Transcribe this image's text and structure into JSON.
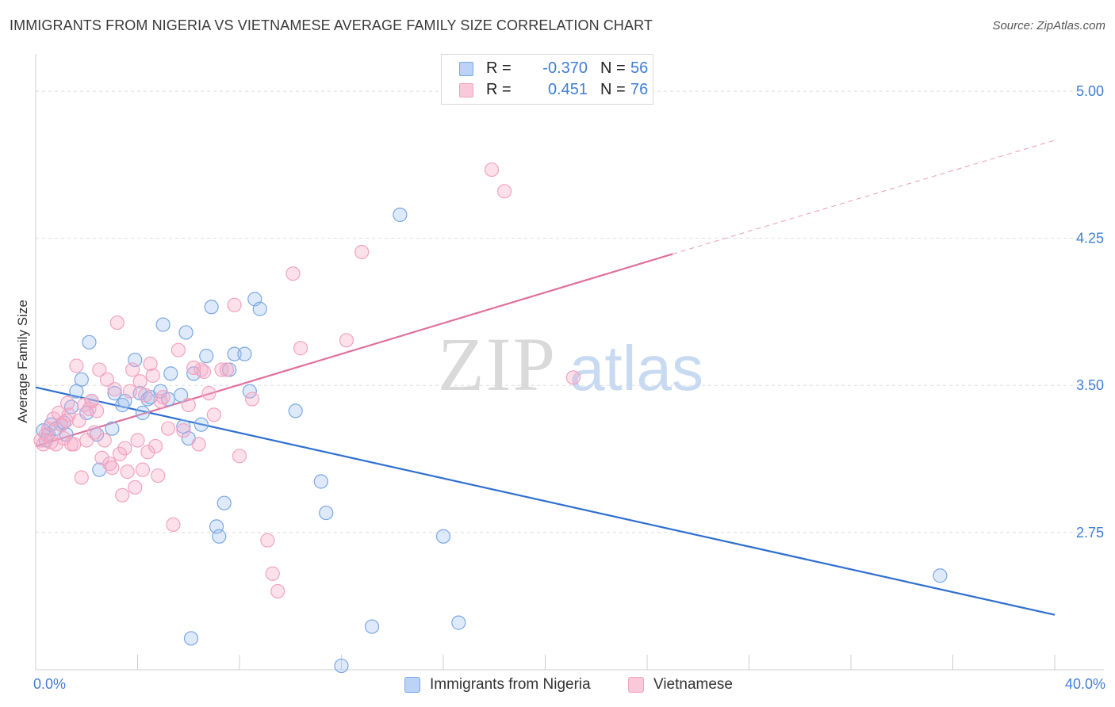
{
  "title": "IMMIGRANTS FROM NIGERIA VS VIETNAMESE AVERAGE FAMILY SIZE CORRELATION CHART",
  "source": "Source: ZipAtlas.com",
  "watermark": {
    "zip": "ZIP",
    "atlas": "atlas"
  },
  "legend_top": [
    {
      "r_label": "R =",
      "r_value": "-0.370",
      "n_label": "N =",
      "n_value": "56"
    },
    {
      "r_label": "R =",
      "r_value": "0.451",
      "n_label": "N =",
      "n_value": "76"
    }
  ],
  "chart_data": {
    "type": "scatter",
    "xlabel": "",
    "ylabel": "Average Family Size",
    "xlim": [
      0,
      40
    ],
    "ylim": [
      2.05,
      5.15
    ],
    "x_tick_labels": [
      {
        "value": 0,
        "label": "0.0%"
      },
      {
        "value": 40,
        "label": "40.0%"
      }
    ],
    "y_ticks": [
      {
        "value": 2.75,
        "label": "2.75"
      },
      {
        "value": 3.5,
        "label": "3.50"
      },
      {
        "value": 4.25,
        "label": "4.25"
      },
      {
        "value": 5.0,
        "label": "5.00"
      }
    ],
    "grid": true,
    "legend_position": "top-center",
    "series": [
      {
        "name": "Immigrants from Nigeria",
        "color": "#7aa7e6",
        "line_color": "#2f6fcf",
        "trend": {
          "x0": 0,
          "y0": 3.49,
          "x1": 40,
          "y1": 2.33
        },
        "points": [
          [
            0.3,
            3.27
          ],
          [
            0.5,
            3.25
          ],
          [
            0.6,
            3.3
          ],
          [
            0.8,
            3.28
          ],
          [
            1.0,
            3.3
          ],
          [
            1.2,
            3.25
          ],
          [
            1.4,
            3.39
          ],
          [
            1.6,
            3.47
          ],
          [
            1.8,
            3.53
          ],
          [
            2.0,
            3.36
          ],
          [
            2.1,
            3.72
          ],
          [
            2.2,
            3.42
          ],
          [
            2.4,
            3.25
          ],
          [
            2.5,
            3.07
          ],
          [
            3.0,
            3.28
          ],
          [
            3.1,
            3.46
          ],
          [
            3.4,
            3.4
          ],
          [
            3.5,
            3.42
          ],
          [
            3.9,
            3.63
          ],
          [
            4.1,
            3.46
          ],
          [
            4.2,
            3.36
          ],
          [
            4.4,
            3.43
          ],
          [
            4.5,
            3.44
          ],
          [
            4.9,
            3.47
          ],
          [
            5.0,
            3.81
          ],
          [
            5.2,
            3.43
          ],
          [
            5.3,
            3.56
          ],
          [
            5.7,
            3.45
          ],
          [
            5.8,
            3.29
          ],
          [
            5.9,
            3.77
          ],
          [
            6.0,
            3.23
          ],
          [
            6.1,
            2.21
          ],
          [
            6.2,
            3.56
          ],
          [
            6.5,
            3.3
          ],
          [
            6.7,
            3.65
          ],
          [
            6.9,
            3.9
          ],
          [
            7.1,
            2.78
          ],
          [
            7.2,
            2.73
          ],
          [
            7.4,
            2.9
          ],
          [
            7.6,
            3.58
          ],
          [
            7.8,
            3.66
          ],
          [
            8.2,
            3.66
          ],
          [
            8.4,
            3.47
          ],
          [
            8.6,
            3.94
          ],
          [
            8.8,
            3.89
          ],
          [
            10.2,
            3.37
          ],
          [
            11.2,
            3.01
          ],
          [
            11.4,
            2.85
          ],
          [
            12.0,
            2.07
          ],
          [
            13.2,
            2.27
          ],
          [
            14.3,
            4.37
          ],
          [
            16.0,
            2.73
          ],
          [
            16.6,
            2.29
          ],
          [
            35.5,
            2.53
          ],
          [
            0.4,
            3.22
          ],
          [
            1.1,
            3.31
          ]
        ]
      },
      {
        "name": "Vietnamese",
        "color": "#f2a3bf",
        "line_color": "#e0709a",
        "trend": {
          "x0": 0,
          "y0": 3.19,
          "x1": 25,
          "y1": 4.17
        },
        "trend_dashed": {
          "x0": 25,
          "y0": 4.17,
          "x1": 40,
          "y1": 4.75
        },
        "points": [
          [
            0.2,
            3.22
          ],
          [
            0.3,
            3.2
          ],
          [
            0.4,
            3.25
          ],
          [
            0.5,
            3.28
          ],
          [
            0.6,
            3.21
          ],
          [
            0.7,
            3.33
          ],
          [
            0.8,
            3.2
          ],
          [
            0.9,
            3.36
          ],
          [
            1.0,
            3.3
          ],
          [
            1.1,
            3.23
          ],
          [
            1.2,
            3.32
          ],
          [
            1.3,
            3.35
          ],
          [
            1.4,
            3.2
          ],
          [
            1.5,
            3.2
          ],
          [
            1.6,
            3.6
          ],
          [
            1.7,
            3.32
          ],
          [
            1.8,
            3.03
          ],
          [
            1.9,
            3.4
          ],
          [
            2.0,
            3.22
          ],
          [
            2.1,
            3.38
          ],
          [
            2.2,
            3.42
          ],
          [
            2.3,
            3.26
          ],
          [
            2.4,
            3.37
          ],
          [
            2.5,
            3.58
          ],
          [
            2.6,
            3.13
          ],
          [
            2.7,
            3.22
          ],
          [
            2.8,
            3.53
          ],
          [
            2.9,
            3.1
          ],
          [
            3.0,
            3.08
          ],
          [
            3.1,
            3.48
          ],
          [
            3.2,
            3.82
          ],
          [
            3.3,
            3.15
          ],
          [
            3.4,
            2.94
          ],
          [
            3.5,
            3.18
          ],
          [
            3.6,
            3.06
          ],
          [
            3.7,
            3.47
          ],
          [
            3.8,
            3.58
          ],
          [
            3.9,
            2.98
          ],
          [
            4.0,
            3.22
          ],
          [
            4.1,
            3.52
          ],
          [
            4.2,
            3.07
          ],
          [
            4.3,
            3.45
          ],
          [
            4.4,
            3.16
          ],
          [
            4.5,
            3.61
          ],
          [
            4.6,
            3.55
          ],
          [
            4.7,
            3.19
          ],
          [
            4.8,
            3.04
          ],
          [
            4.9,
            3.42
          ],
          [
            5.0,
            3.44
          ],
          [
            5.2,
            3.28
          ],
          [
            5.4,
            2.79
          ],
          [
            5.6,
            3.68
          ],
          [
            5.8,
            3.27
          ],
          [
            6.0,
            3.4
          ],
          [
            6.2,
            3.59
          ],
          [
            6.4,
            3.2
          ],
          [
            6.5,
            3.58
          ],
          [
            6.6,
            3.57
          ],
          [
            6.8,
            3.46
          ],
          [
            7.0,
            3.35
          ],
          [
            7.3,
            3.58
          ],
          [
            7.5,
            3.58
          ],
          [
            7.8,
            3.91
          ],
          [
            8.0,
            3.14
          ],
          [
            8.5,
            3.43
          ],
          [
            9.1,
            2.71
          ],
          [
            9.3,
            2.54
          ],
          [
            9.5,
            2.45
          ],
          [
            10.1,
            4.07
          ],
          [
            10.4,
            3.69
          ],
          [
            12.2,
            3.73
          ],
          [
            12.8,
            4.18
          ],
          [
            17.9,
            4.6
          ],
          [
            18.4,
            4.49
          ],
          [
            21.1,
            3.54
          ],
          [
            1.25,
            3.41
          ]
        ]
      }
    ]
  }
}
